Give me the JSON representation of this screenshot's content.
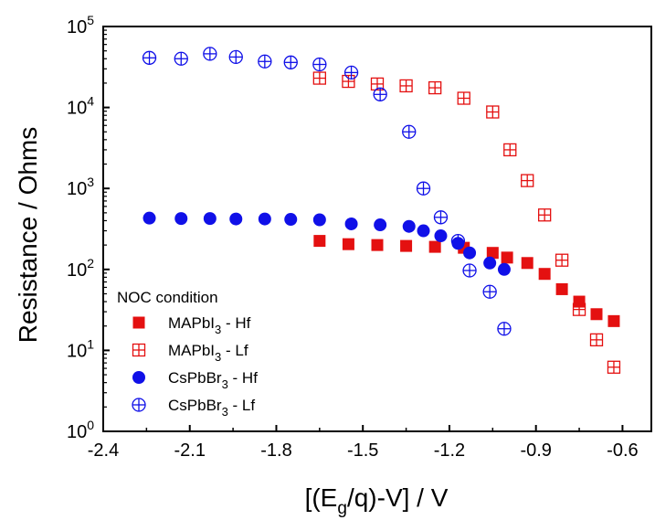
{
  "chart_data": {
    "type": "scatter",
    "title": "",
    "xlabel": {
      "pre": "[(E",
      "sub": "g",
      "post": "/q)-V] / V"
    },
    "ylabel": "Resistance / Ohms",
    "xlim": [
      -2.4,
      -0.5
    ],
    "ylim": [
      1,
      100000
    ],
    "yscale": "log",
    "x_ticks": [
      -2.4,
      -2.1,
      -1.8,
      -1.5,
      -1.2,
      -0.9,
      -0.6
    ],
    "x_tick_labels": [
      "-2.4",
      "-2.1",
      "-1.8",
      "-1.5",
      "-1.2",
      "-0.9",
      "-0.6"
    ],
    "y_ticks": [
      1,
      10,
      100,
      1000,
      10000,
      100000
    ],
    "y_tick_labels": [
      {
        "base": "10",
        "exp": "0"
      },
      {
        "base": "10",
        "exp": "1"
      },
      {
        "base": "10",
        "exp": "2"
      },
      {
        "base": "10",
        "exp": "3"
      },
      {
        "base": "10",
        "exp": "4"
      },
      {
        "base": "10",
        "exp": "5"
      }
    ],
    "grid": false,
    "legend": {
      "title": "NOC condition",
      "placement": "bottom-left"
    },
    "series": [
      {
        "name": "MAPbI3 - Hf",
        "label": {
          "pre": "MAPbI",
          "sub": "3",
          "post": " - Hf"
        },
        "color": "#e41010",
        "marker": "square-filled",
        "x": [
          -1.65,
          -1.55,
          -1.45,
          -1.35,
          -1.25,
          -1.15,
          -1.05,
          -1.0,
          -0.93,
          -0.87,
          -0.81,
          -0.75,
          -0.69,
          -0.63
        ],
        "y": [
          225,
          205,
          200,
          195,
          190,
          185,
          160,
          140,
          120,
          88,
          57,
          40,
          28,
          23
        ]
      },
      {
        "name": "MAPbI3 - Lf",
        "label": {
          "pre": "MAPbI",
          "sub": "3",
          "post": " - Lf"
        },
        "color": "#e41010",
        "marker": "square-plus-open",
        "x": [
          -1.65,
          -1.55,
          -1.45,
          -1.35,
          -1.25,
          -1.15,
          -1.05,
          -0.99,
          -0.93,
          -0.87,
          -0.81,
          -0.75,
          -0.69,
          -0.63
        ],
        "y": [
          23000,
          21000,
          19500,
          18500,
          17500,
          13000,
          8800,
          3000,
          1250,
          470,
          130,
          32,
          13.5,
          6.2
        ]
      },
      {
        "name": "CsPbBr3 - Hf",
        "label": {
          "pre": "CsPbBr",
          "sub": "3",
          "post": " - Hf"
        },
        "color": "#1010e8",
        "marker": "circle-filled",
        "x": [
          -2.24,
          -2.13,
          -2.03,
          -1.94,
          -1.84,
          -1.75,
          -1.65,
          -1.54,
          -1.44,
          -1.34,
          -1.29,
          -1.23,
          -1.17,
          -1.13,
          -1.06,
          -1.01
        ],
        "y": [
          430,
          425,
          425,
          420,
          420,
          415,
          410,
          365,
          355,
          340,
          300,
          260,
          210,
          160,
          120,
          100
        ]
      },
      {
        "name": "CsPbBr3 - Lf",
        "label": {
          "pre": "CsPbBr",
          "sub": "3",
          "post": " - Lf"
        },
        "color": "#1010e8",
        "marker": "circle-plus-open",
        "x": [
          -2.24,
          -2.13,
          -2.03,
          -1.94,
          -1.84,
          -1.75,
          -1.65,
          -1.54,
          -1.44,
          -1.34,
          -1.29,
          -1.23,
          -1.17,
          -1.13,
          -1.06,
          -1.01
        ],
        "y": [
          41000,
          40000,
          46000,
          42000,
          37000,
          36000,
          34000,
          27000,
          14500,
          5000,
          1000,
          440,
          225,
          97,
          53,
          18.5
        ]
      }
    ]
  }
}
